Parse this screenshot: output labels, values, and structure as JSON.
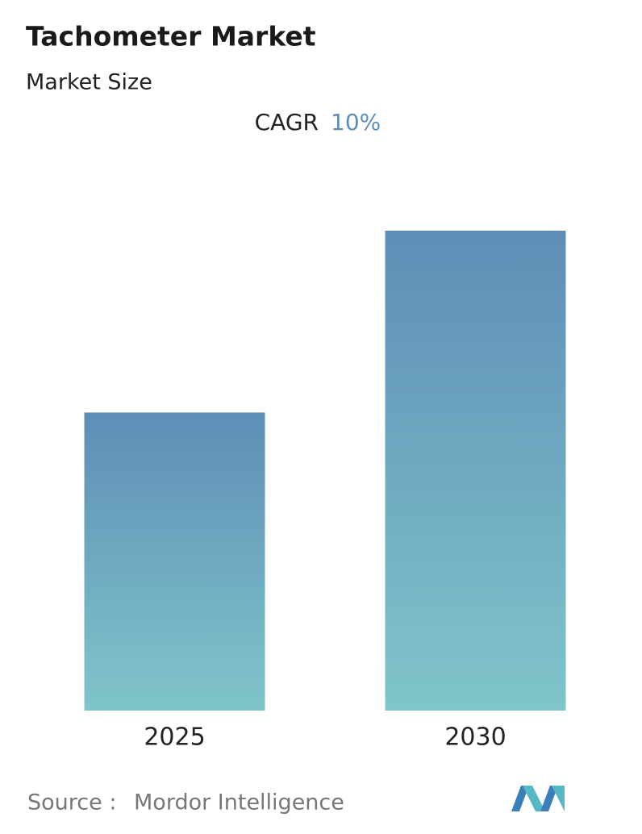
{
  "chart_data": {
    "type": "bar",
    "title": "Tachometer Market",
    "subtitle": "Market Size",
    "cagr": {
      "label": "CAGR",
      "value": "10%"
    },
    "categories": [
      "2025",
      "2030"
    ],
    "values": [
      1,
      1.61
    ],
    "ylim": [
      0,
      1.61
    ],
    "gradient": [
      "#5e8eb7",
      "#80c5ca"
    ],
    "source": {
      "label": "Source :",
      "text": "Mordor Intelligence"
    }
  }
}
